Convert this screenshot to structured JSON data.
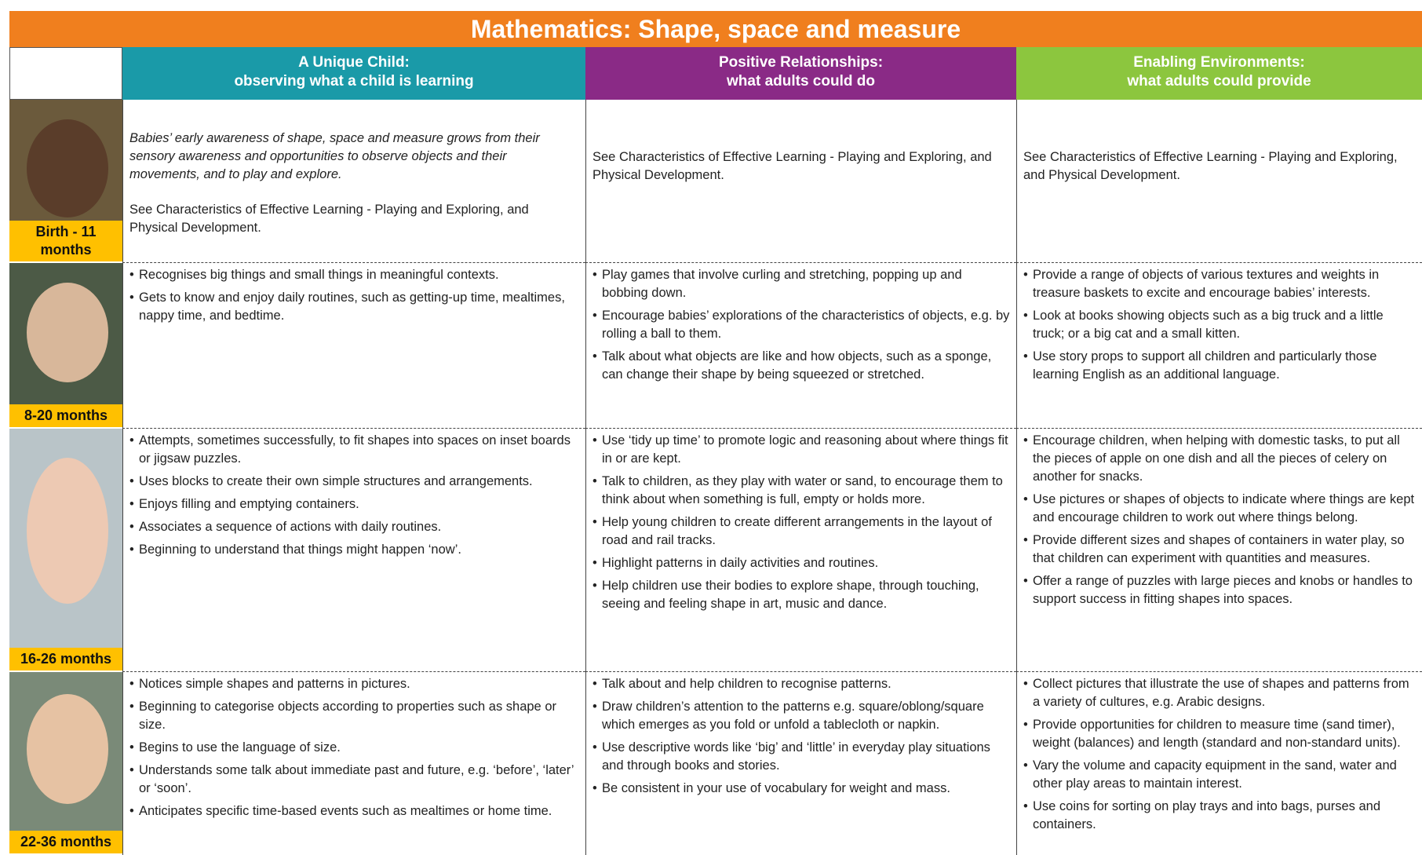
{
  "header": {
    "title": "Mathematics: Shape, space and measure"
  },
  "columns": [
    {
      "title": "A Unique Child:",
      "subtitle": "observing what a child is learning"
    },
    {
      "title": "Positive Relationships:",
      "subtitle": "what adults could do"
    },
    {
      "title": "Enabling Environments:",
      "subtitle": "what adults could provide"
    }
  ],
  "rows": [
    {
      "age": "Birth - 11 months",
      "cells": [
        [
          "Babies’ early awareness of shape, space and measure grows from their sensory awareness and opportunities to observe objects and their movements, and to play and explore.",
          "See Characteristics of Effective Learning - Playing and Exploring, and Physical Development."
        ],
        [
          "See Characteristics of Effective Learning - Playing and Exploring, and Physical Development."
        ],
        [
          "See Characteristics of Effective Learning - Playing and Exploring, and Physical Development."
        ]
      ]
    },
    {
      "age": "8-20 months",
      "cells": [
        [
          "Recognises big things and small things in meaningful contexts.",
          "Gets to know and enjoy daily routines, such as getting-up time, mealtimes, nappy time, and bedtime."
        ],
        [
          "Play games that involve curling and stretching, popping up and bobbing down.",
          "Encourage babies’ explorations of the characteristics of objects, e.g. by rolling a ball to them.",
          "Talk about what objects are like and how objects, such as a sponge, can change their shape by being squeezed or stretched."
        ],
        [
          "Provide a range of objects of various textures and weights in treasure baskets to excite and encourage babies’ interests.",
          "Look at books showing objects such as a big truck and a little truck; or a big cat and a small kitten.",
          "Use story props to support all children and particularly those learning English as an additional language."
        ]
      ]
    },
    {
      "age": "16-26 months",
      "cells": [
        [
          "Attempts, sometimes successfully, to fit shapes into spaces on inset boards or jigsaw puzzles.",
          "Uses blocks to create their own simple structures and arrangements.",
          "Enjoys filling and emptying containers.",
          "Associates a sequence of actions with daily routines.",
          "Beginning to understand that things might happen ‘now’."
        ],
        [
          "Use ‘tidy up time’ to promote logic and reasoning about where things fit in or are kept.",
          "Talk to children, as they play with water or sand, to encourage them to think about when something is full, empty or holds more.",
          "Help young children to create different arrangements in the layout of road and rail tracks.",
          "Highlight patterns in daily activities and routines.",
          "Help children use their bodies to explore shape, through touching, seeing and feeling shape in art, music and dance."
        ],
        [
          "Encourage children, when helping with domestic tasks, to put all the pieces of apple on one dish and all the pieces of celery on another for snacks.",
          "Use pictures or shapes of objects to indicate where things are kept and encourage children to work out where things belong.",
          "Provide different sizes and shapes of containers in water play, so that children can experiment with quantities and measures.",
          "Offer a range of puzzles with large pieces and knobs or handles to support success in fitting shapes into spaces."
        ]
      ]
    },
    {
      "age": "22-36 months",
      "cells": [
        [
          "Notices simple shapes and patterns in pictures.",
          "Beginning to categorise objects according to properties such as shape or size.",
          "Begins to use the language of size.",
          "Understands some talk about immediate past and future, e.g. ‘before’, ‘later’ or ‘soon’.",
          "Anticipates specific time-based events such as mealtimes or home time."
        ],
        [
          "Talk about and help children to recognise patterns.",
          "Draw children’s attention to the patterns e.g. square/oblong/square which emerges as you fold or unfold a tablecloth or napkin.",
          "Use descriptive words like ‘big’ and ‘little’ in everyday play situations and through books and stories.",
          "Be consistent in your use of vocabulary for weight and mass."
        ],
        [
          "Collect pictures that illustrate the use of shapes and patterns from a variety of cultures, e.g. Arabic designs.",
          "Provide opportunities for children to measure time (sand timer), weight (balances) and length (standard and non-standard units).",
          "Vary the volume and capacity equipment in the sand, water and other play areas to maintain interest.",
          "Use coins for sorting on play trays and into bags, purses and containers."
        ]
      ]
    }
  ]
}
